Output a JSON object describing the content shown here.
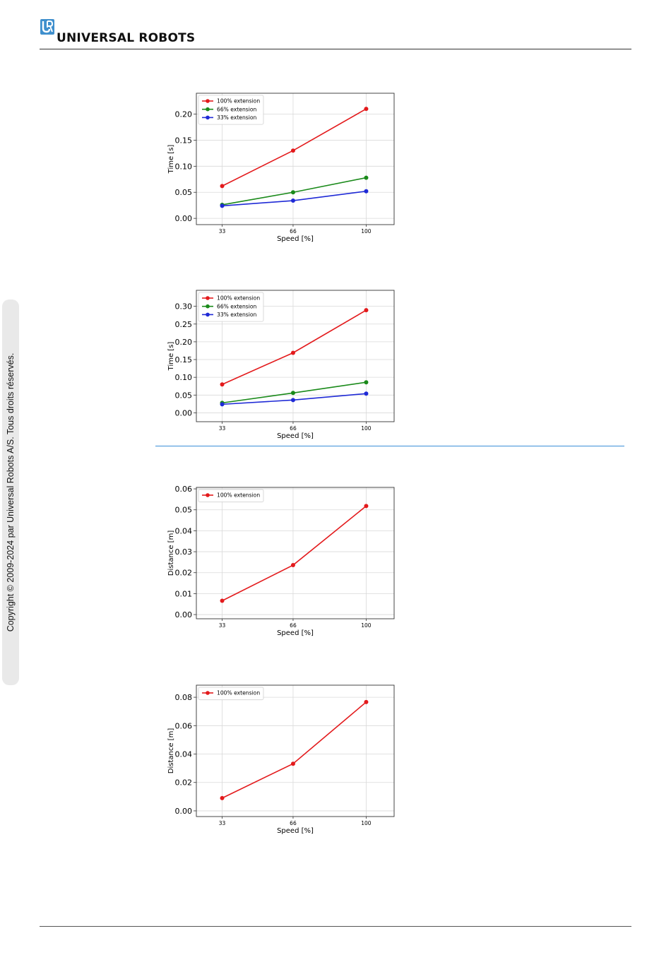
{
  "header": {
    "brand": "UNIVERSAL ROBOTS",
    "logo_icon": "ur-logo-icon",
    "logo_color": "#3f8fcd"
  },
  "sidebar": {
    "copyright": "Copyright © 2009-2024 par Universal Robots A/S. Tous droits réservés."
  },
  "colors": {
    "red": "#e31a1c",
    "green": "#1a8a1a",
    "blue": "#1f2ad6",
    "divider": "#3a8fd8"
  },
  "chart_data": [
    {
      "type": "line",
      "x": [
        33,
        66,
        100
      ],
      "xticks": [
        "33",
        "66",
        "100"
      ],
      "xlabel": "Speed [%]",
      "ylabel": "Time [s]",
      "ylim": [
        -0.012,
        0.24
      ],
      "yticks": [
        "0.00",
        "0.05",
        "0.10",
        "0.15",
        "0.20"
      ],
      "ytick_values": [
        0,
        0.05,
        0.1,
        0.15,
        0.2
      ],
      "grid": true,
      "legend": "top-left",
      "series": [
        {
          "name": "100% extension",
          "color": "#e31a1c",
          "values": [
            0.062,
            0.13,
            0.21
          ]
        },
        {
          "name": "66% extension",
          "color": "#1a8a1a",
          "values": [
            0.026,
            0.05,
            0.078
          ]
        },
        {
          "name": "33% extension",
          "color": "#1f2ad6",
          "values": [
            0.024,
            0.034,
            0.052
          ]
        }
      ]
    },
    {
      "type": "line",
      "x": [
        33,
        66,
        100
      ],
      "xticks": [
        "33",
        "66",
        "100"
      ],
      "xlabel": "Speed [%]",
      "ylabel": "Time [s]",
      "ylim": [
        -0.025,
        0.345
      ],
      "yticks": [
        "0.00",
        "0.05",
        "0.10",
        "0.15",
        "0.20",
        "0.25",
        "0.30"
      ],
      "ytick_values": [
        0,
        0.05,
        0.1,
        0.15,
        0.2,
        0.25,
        0.3
      ],
      "grid": true,
      "legend": "top-left",
      "series": [
        {
          "name": "100% extension",
          "color": "#e31a1c",
          "values": [
            0.08,
            0.169,
            0.289
          ]
        },
        {
          "name": "66% extension",
          "color": "#1a8a1a",
          "values": [
            0.028,
            0.056,
            0.086
          ]
        },
        {
          "name": "33% extension",
          "color": "#1f2ad6",
          "values": [
            0.024,
            0.036,
            0.054
          ]
        }
      ]
    },
    {
      "type": "line",
      "x": [
        33,
        66,
        100
      ],
      "xticks": [
        "33",
        "66",
        "100"
      ],
      "xlabel": "Speed [%]",
      "ylabel": "Distance [m]",
      "ylim": [
        -0.002,
        0.0607
      ],
      "yticks": [
        "0.00",
        "0.01",
        "0.02",
        "0.03",
        "0.04",
        "0.05",
        "0.06"
      ],
      "ytick_values": [
        0,
        0.01,
        0.02,
        0.03,
        0.04,
        0.05,
        0.06
      ],
      "grid": true,
      "legend": "top-left",
      "series": [
        {
          "name": "100% extension",
          "color": "#e31a1c",
          "values": [
            0.0066,
            0.0236,
            0.0518
          ]
        }
      ]
    },
    {
      "type": "line",
      "x": [
        33,
        66,
        100
      ],
      "xticks": [
        "33",
        "66",
        "100"
      ],
      "xlabel": "Speed [%]",
      "ylabel": "Distance [m]",
      "ylim": [
        -0.004,
        0.0885
      ],
      "yticks": [
        "0.00",
        "0.02",
        "0.04",
        "0.06",
        "0.08"
      ],
      "ytick_values": [
        0,
        0.02,
        0.04,
        0.06,
        0.08
      ],
      "grid": true,
      "legend": "top-left",
      "series": [
        {
          "name": "100% extension",
          "color": "#e31a1c",
          "values": [
            0.009,
            0.0332,
            0.0766
          ]
        }
      ]
    }
  ]
}
